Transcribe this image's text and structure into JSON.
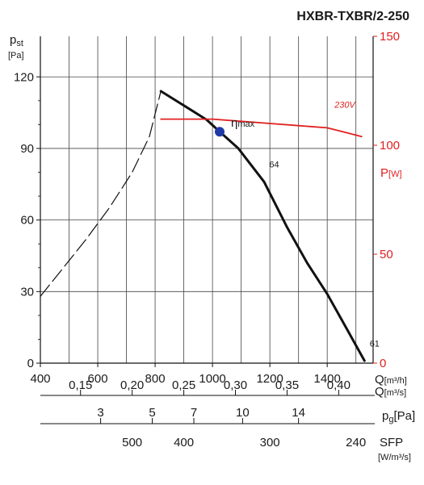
{
  "title": "HXBR-TXBR/2-250",
  "chart_data": {
    "type": "line",
    "title": "HXBR-TXBR/2-250",
    "x_axis": {
      "label_main": "Q",
      "unit": "[m³/h]",
      "range": [
        400,
        1560
      ],
      "ticks": [
        400,
        600,
        800,
        1000,
        1200,
        1400
      ]
    },
    "y_axis_left": {
      "label_main": "p",
      "label_sub": "st",
      "unit": "[Pa]",
      "range": [
        0,
        137
      ],
      "ticks": [
        0,
        30,
        60,
        90,
        120
      ]
    },
    "y_axis_right": {
      "label_main": "P",
      "unit": "[W]",
      "range": [
        0,
        150
      ],
      "ticks": [
        0,
        50,
        100,
        150
      ]
    },
    "secondary_scales": [
      {
        "key": "q_m3s",
        "label": "Q",
        "unit": "[m³/s]",
        "ticks": [
          {
            "label": "0,15",
            "value": 540
          },
          {
            "label": "0,20",
            "value": 720
          },
          {
            "label": "0,25",
            "value": 900
          },
          {
            "label": "0,30",
            "value": 1080
          },
          {
            "label": "0,35",
            "value": 1260
          },
          {
            "label": "0,40",
            "value": 1440
          }
        ]
      },
      {
        "key": "pg",
        "label": "p",
        "sub": "g",
        "unit": "[Pa]",
        "ticks": [
          {
            "label": "3",
            "value": 610
          },
          {
            "label": "5",
            "value": 790
          },
          {
            "label": "7",
            "value": 935
          },
          {
            "label": "10",
            "value": 1105
          },
          {
            "label": "14",
            "value": 1300
          }
        ]
      },
      {
        "key": "sfp",
        "label": "SFP",
        "unit": "[W/m³/s]",
        "ticks": [
          {
            "label": "500",
            "value": 720
          },
          {
            "label": "400",
            "value": 900
          },
          {
            "label": "300",
            "value": 1200
          },
          {
            "label": "240",
            "value": 1500
          }
        ]
      }
    ],
    "series": [
      {
        "name": "64",
        "axis": "left",
        "style": "solid",
        "color": "#111111",
        "x": [
          820,
          900,
          980,
          1025,
          1090,
          1180,
          1260,
          1330,
          1400,
          1470,
          1530
        ],
        "y": [
          114,
          108,
          102,
          97,
          90,
          76,
          57,
          42,
          29,
          14,
          1
        ]
      },
      {
        "axis": "left",
        "style": "dashed",
        "color": "#111111",
        "x": [
          400,
          480,
          560,
          640,
          720,
          780,
          820
        ],
        "y": [
          28,
          40,
          52,
          65,
          80,
          95,
          114
        ]
      },
      {
        "name": "230V",
        "axis": "right",
        "style": "solid",
        "color": "#e02020",
        "x": [
          820,
          920,
          1000,
          1100,
          1200,
          1300,
          1400,
          1460,
          1520
        ],
        "y": [
          112,
          112,
          112,
          111,
          110,
          109,
          108,
          106,
          104
        ]
      }
    ],
    "annotations": [
      {
        "text": "η",
        "sub": "max",
        "x": 1025,
        "y": 97,
        "color": "#1f3aa8"
      },
      {
        "text": "64",
        "x": 1150,
        "y": 83
      },
      {
        "text": "230V",
        "x": 1450,
        "y": 115,
        "color": "#e02020"
      },
      {
        "text": "61",
        "x": 1500,
        "y": 8
      }
    ],
    "grid": true
  }
}
